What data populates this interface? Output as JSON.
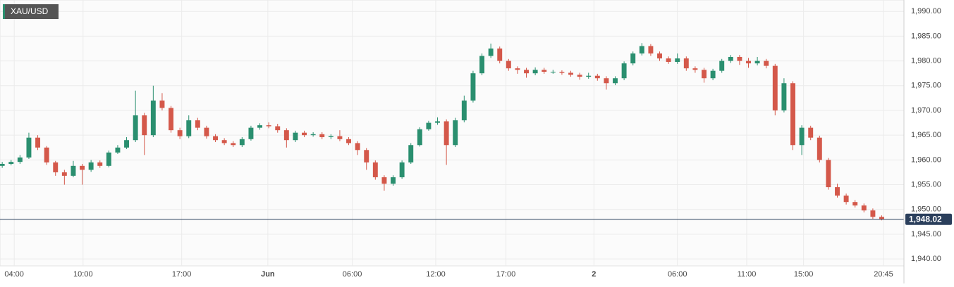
{
  "chart_data": {
    "type": "candlestick",
    "symbol": "XAU/USD",
    "up_color": "#2a8f6f",
    "down_color": "#d4584a",
    "grid": true,
    "xlim": [
      -0.25,
      101.5
    ],
    "ylim": [
      1938.6,
      1992.3
    ],
    "xticks": [
      {
        "value": 1.35,
        "label": "04:00"
      },
      {
        "value": 9.1,
        "label": "10:00"
      },
      {
        "value": 20.2,
        "label": "17:00"
      },
      {
        "value": 29.9,
        "label": "Jun"
      },
      {
        "value": 39.4,
        "label": "06:00"
      },
      {
        "value": 48.8,
        "label": "12:00"
      },
      {
        "value": 56.7,
        "label": "17:00"
      },
      {
        "value": 66.6,
        "label": "2"
      },
      {
        "value": 76,
        "label": "06:00"
      },
      {
        "value": 83.8,
        "label": "11:00"
      },
      {
        "value": 90.2,
        "label": "15:00"
      },
      {
        "value": 99.2,
        "label": "20:45"
      }
    ],
    "yticks": [
      {
        "value": 1940,
        "label": "1,940.00"
      },
      {
        "value": 1945,
        "label": "1,945.00"
      },
      {
        "value": 1950,
        "label": "1,950.00"
      },
      {
        "value": 1955,
        "label": "1,955.00"
      },
      {
        "value": 1960,
        "label": "1,960.00"
      },
      {
        "value": 1965,
        "label": "1,965.00"
      },
      {
        "value": 1970,
        "label": "1,970.00"
      },
      {
        "value": 1975,
        "label": "1,975.00"
      },
      {
        "value": 1980,
        "label": "1,980.00"
      },
      {
        "value": 1985,
        "label": "1,985.00"
      },
      {
        "value": 1990,
        "label": "1,990.00"
      }
    ],
    "last_price": {
      "value": 1948.02,
      "label": "1,948.02"
    },
    "open": [
      1958.8,
      1959.2,
      1959.6,
      1960.5,
      1964.5,
      1962.5,
      1959.5,
      1957.5,
      1956.8,
      1958.8,
      1958,
      1959.5,
      1958.8,
      1961.5,
      1962.5,
      1964,
      1969,
      1965,
      1972,
      1970.5,
      1966,
      1964.8,
      1968,
      1966.5,
      1964.8,
      1964,
      1963.4,
      1963,
      1964.2,
      1966.5,
      1967,
      1966.8,
      1966,
      1964,
      1965.5,
      1965,
      1965.2,
      1964.6,
      1964.8,
      1964.2,
      1963.4,
      1962,
      1959.5,
      1956.5,
      1955.2,
      1956.5,
      1959.5,
      1963,
      1966.2,
      1967.5,
      1967.8,
      1963,
      1968,
      1972,
      1977.5,
      1981,
      1982.5,
      1980,
      1978.5,
      1978.2,
      1977.5,
      1978.2,
      1977.8,
      1977.8,
      1977.6,
      1977.2,
      1976.8,
      1977,
      1976.5,
      1975.5,
      1976.5,
      1979.5,
      1981.5,
      1983,
      1981.5,
      1980.5,
      1979.8,
      1980.5,
      1978.5,
      1978.2,
      1976.5,
      1978,
      1980,
      1980.8,
      1980,
      1979.5,
      1980,
      1979,
      1970,
      1975.5,
      1963,
      1966.5,
      1964.5,
      1960,
      1954.5,
      1952.8,
      1951.5,
      1950.8,
      1949.8,
      1948.5
    ],
    "high": [
      1959.6,
      1960.0,
      1961.0,
      1965.5,
      1965.0,
      1962.8,
      1959.8,
      1958.0,
      1959.8,
      1959.2,
      1960.0,
      1959.9,
      1961.9,
      1963.0,
      1964.6,
      1974.0,
      1969.5,
      1975.0,
      1973.5,
      1970.9,
      1966.5,
      1969.0,
      1968.5,
      1966.9,
      1965.2,
      1964.4,
      1963.8,
      1964.6,
      1966.9,
      1967.4,
      1967.6,
      1967.3,
      1966.4,
      1965.9,
      1965.9,
      1965.6,
      1965.6,
      1965.2,
      1966.0,
      1964.6,
      1963.8,
      1962.4,
      1959.9,
      1956.9,
      1956.9,
      1959.9,
      1963.4,
      1966.6,
      1967.9,
      1968.6,
      1968.2,
      1968.5,
      1973.0,
      1978.0,
      1981.5,
      1983.5,
      1982.9,
      1980.4,
      1978.9,
      1978.6,
      1978.7,
      1978.6,
      1978.2,
      1978.1,
      1978.0,
      1977.6,
      1977.6,
      1977.4,
      1976.9,
      1976.9,
      1979.9,
      1981.9,
      1983.6,
      1983.4,
      1981.9,
      1980.9,
      1981.5,
      1980.9,
      1978.9,
      1978.6,
      1978.4,
      1980.4,
      1981.2,
      1981.2,
      1980.6,
      1980.8,
      1980.4,
      1979.4,
      1976.5,
      1975.9,
      1967.0,
      1966.9,
      1964.9,
      1960.4,
      1955.2,
      1953.2,
      1951.9,
      1951.2,
      1950.2,
      1948.8
    ],
    "low": [
      1958.4,
      1958.9,
      1959.2,
      1960.2,
      1962.0,
      1959.0,
      1956.8,
      1955.0,
      1956.5,
      1955.0,
      1957.6,
      1958.4,
      1958.5,
      1961.2,
      1962.2,
      1963.6,
      1961.0,
      1964.6,
      1970.0,
      1965.5,
      1964.2,
      1964.4,
      1966.0,
      1964.3,
      1963.6,
      1963.0,
      1962.6,
      1962.6,
      1963.9,
      1966.1,
      1966.4,
      1965.5,
      1962.5,
      1963.6,
      1964.6,
      1964.7,
      1964.2,
      1964.2,
      1963.8,
      1963.0,
      1961.0,
      1958.0,
      1956.0,
      1953.8,
      1954.8,
      1956.2,
      1959.2,
      1962.7,
      1965.9,
      1967.1,
      1959.0,
      1962.6,
      1967.6,
      1971.6,
      1977.1,
      1980.6,
      1979.5,
      1978.0,
      1977.4,
      1976.6,
      1977.1,
      1977.4,
      1977.4,
      1977.2,
      1976.8,
      1976.2,
      1976.4,
      1976.0,
      1974.2,
      1975.1,
      1976.1,
      1979.1,
      1981.1,
      1981.0,
      1980.0,
      1979.4,
      1979.4,
      1978.0,
      1977.6,
      1975.6,
      1976.1,
      1977.6,
      1979.6,
      1979.2,
      1978.6,
      1979.1,
      1978.5,
      1969.0,
      1969.6,
      1962.0,
      1961.0,
      1964.0,
      1959.5,
      1954.0,
      1952.4,
      1951.0,
      1950.4,
      1949.4,
      1948.1,
      1947.8
    ],
    "close": [
      1959.2,
      1959.6,
      1960.5,
      1964.5,
      1962.5,
      1959.5,
      1957.5,
      1956.8,
      1958.8,
      1958,
      1959.5,
      1958.8,
      1961.5,
      1962.5,
      1964,
      1969,
      1965,
      1972,
      1970.5,
      1966,
      1964.8,
      1968,
      1966.5,
      1964.8,
      1964,
      1963.4,
      1963,
      1964.2,
      1966.5,
      1967,
      1966.8,
      1966,
      1964,
      1965.5,
      1965,
      1965.2,
      1964.6,
      1964.8,
      1964.2,
      1963.4,
      1962,
      1959.5,
      1956.5,
      1955.2,
      1956.5,
      1959.5,
      1963,
      1966.2,
      1967.5,
      1967.8,
      1963,
      1968,
      1972,
      1977.5,
      1981,
      1982.5,
      1980,
      1978.5,
      1978.2,
      1977.5,
      1978.2,
      1977.8,
      1977.8,
      1977.6,
      1977.2,
      1976.8,
      1977,
      1976.5,
      1975.5,
      1976.5,
      1979.5,
      1981.5,
      1983,
      1981.5,
      1980.5,
      1979.8,
      1980.5,
      1978.5,
      1978.2,
      1976.5,
      1978,
      1980,
      1980.8,
      1980,
      1979.5,
      1980,
      1979,
      1970,
      1975.5,
      1963,
      1966.5,
      1964.5,
      1960,
      1954.5,
      1952.8,
      1951.5,
      1950.8,
      1949.8,
      1948.5,
      1948.02
    ]
  }
}
